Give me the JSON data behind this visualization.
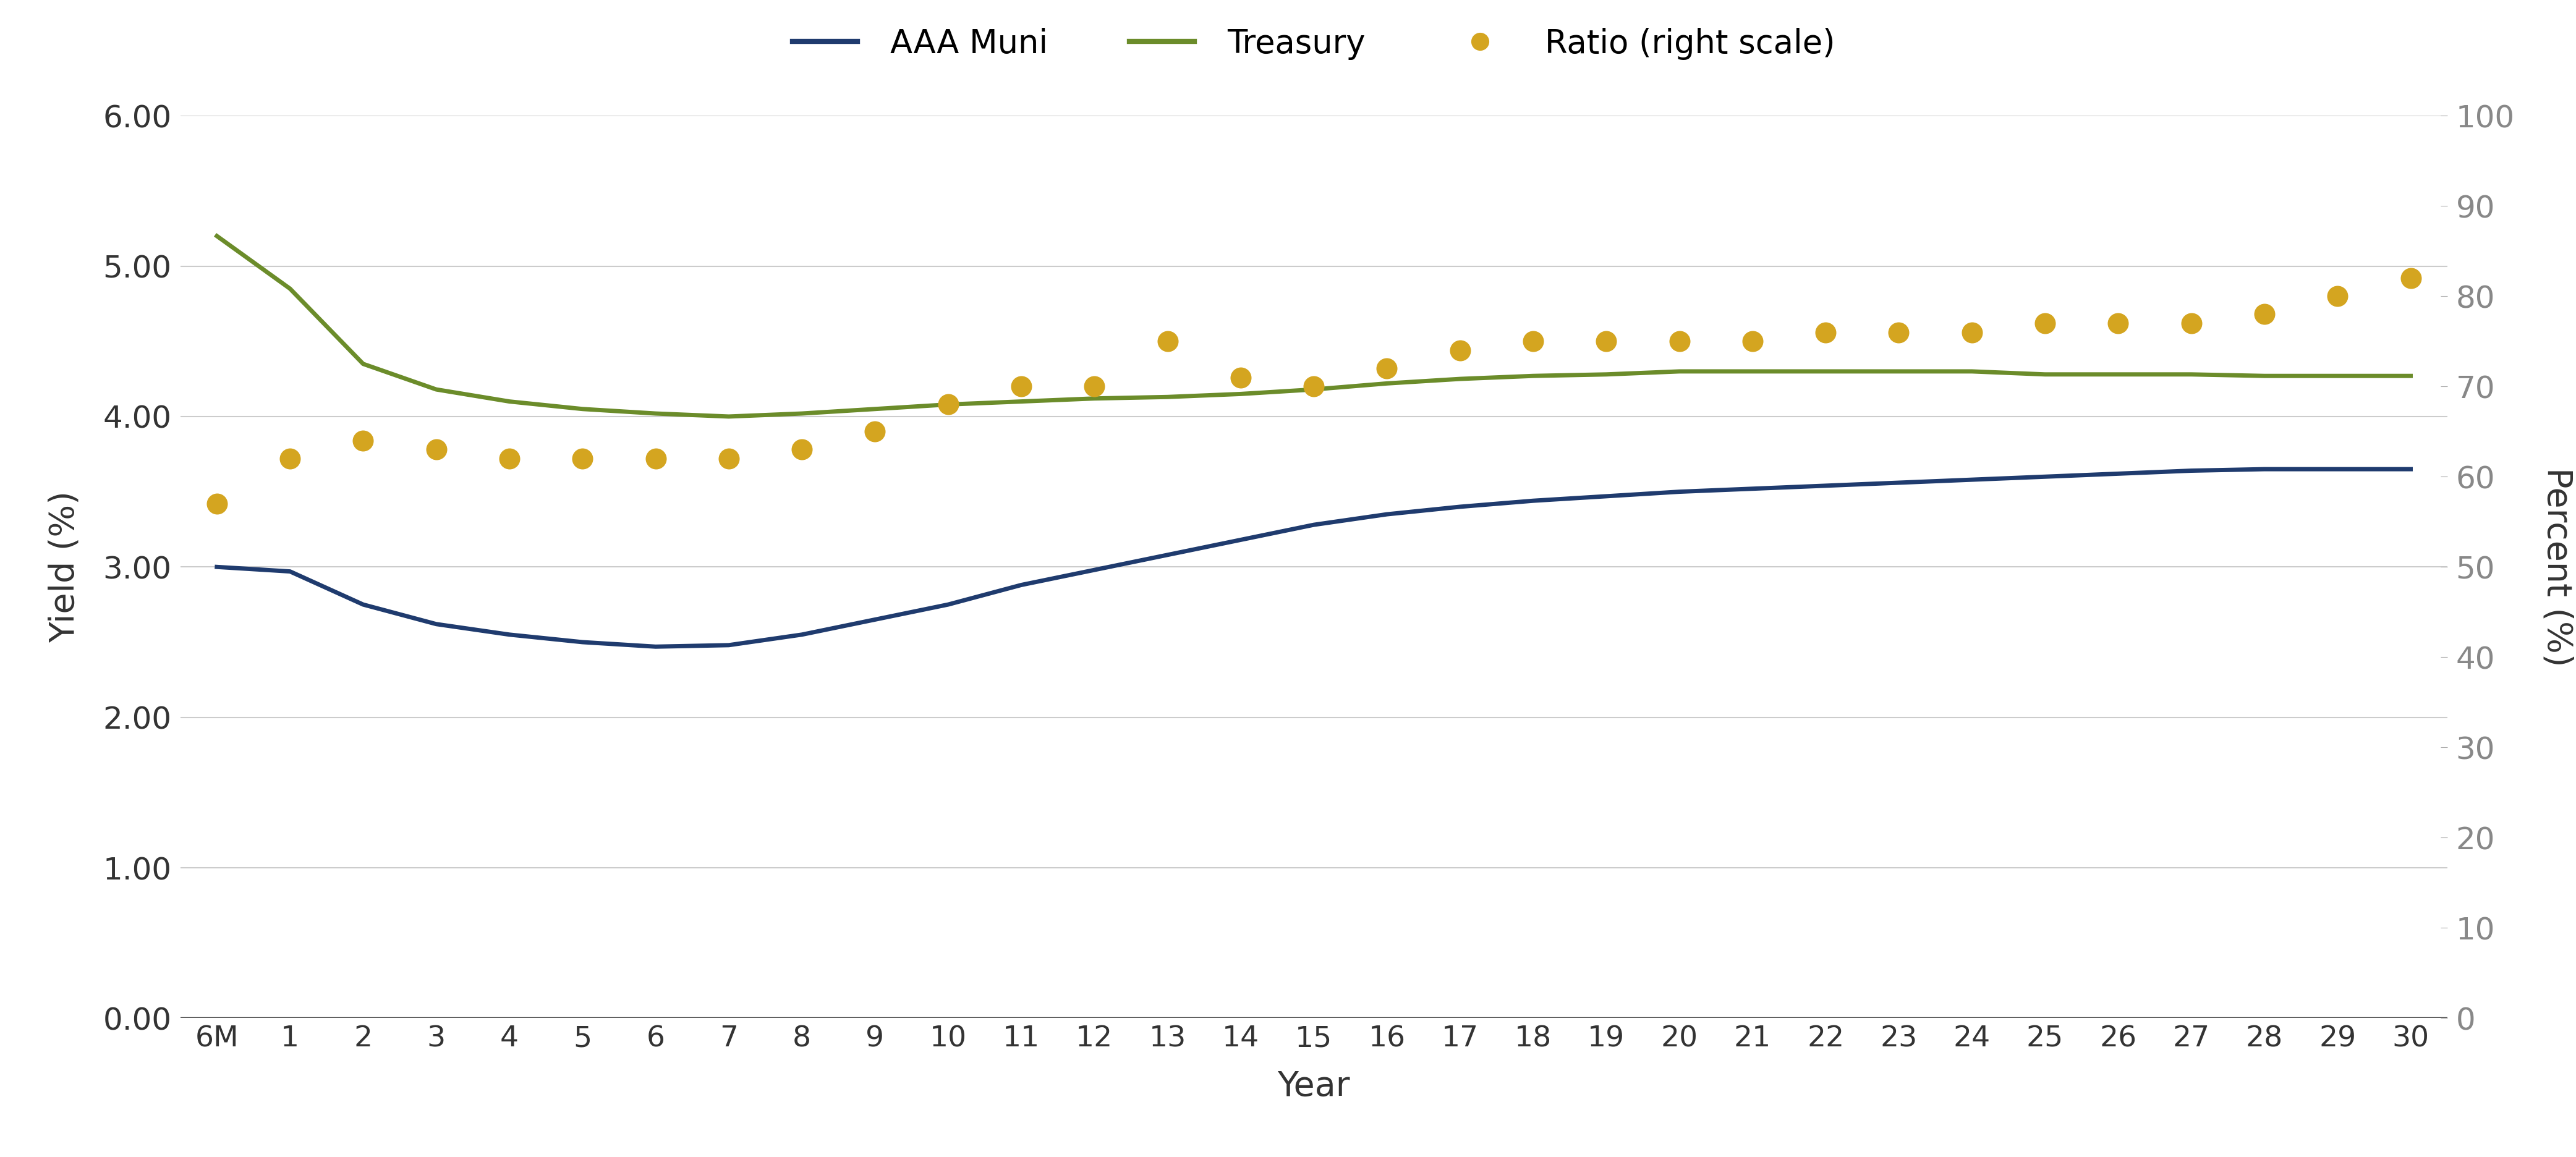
{
  "xlabel": "Year",
  "ylabel_left": "Yield (%)",
  "ylabel_right": "Percent (%)",
  "x_labels": [
    "6M",
    "1",
    "2",
    "3",
    "4",
    "5",
    "6",
    "7",
    "8",
    "9",
    "10",
    "11",
    "12",
    "13",
    "14",
    "15",
    "16",
    "17",
    "18",
    "19",
    "20",
    "21",
    "22",
    "23",
    "24",
    "25",
    "26",
    "27",
    "28",
    "29",
    "30"
  ],
  "aaa_muni": [
    3.0,
    2.97,
    2.75,
    2.62,
    2.55,
    2.5,
    2.47,
    2.48,
    2.55,
    2.65,
    2.75,
    2.88,
    2.98,
    3.08,
    3.18,
    3.28,
    3.35,
    3.4,
    3.44,
    3.47,
    3.5,
    3.52,
    3.54,
    3.56,
    3.58,
    3.6,
    3.62,
    3.64,
    3.65,
    3.65,
    3.65
  ],
  "treasury": [
    5.2,
    4.85,
    4.35,
    4.18,
    4.1,
    4.05,
    4.02,
    4.0,
    4.02,
    4.05,
    4.08,
    4.1,
    4.12,
    4.13,
    4.15,
    4.18,
    4.22,
    4.25,
    4.27,
    4.28,
    4.3,
    4.3,
    4.3,
    4.3,
    4.3,
    4.28,
    4.28,
    4.28,
    4.27,
    4.27,
    4.27
  ],
  "ratio": [
    57,
    62,
    64,
    63,
    62,
    62,
    62,
    62,
    63,
    65,
    68,
    70,
    70,
    75,
    71,
    70,
    72,
    74,
    75,
    75,
    75,
    75,
    76,
    76,
    76,
    77,
    77,
    77,
    78,
    80,
    82
  ],
  "muni_color": "#1f3b6e",
  "treasury_color": "#6b8c2a",
  "ratio_color": "#d4a520",
  "background_color": "#ffffff",
  "grid_color": "#cccccc",
  "ylim_left": [
    0.0,
    6.0
  ],
  "ylim_right": [
    0,
    100
  ],
  "yticks_left": [
    0.0,
    1.0,
    2.0,
    3.0,
    4.0,
    5.0,
    6.0
  ],
  "yticks_right": [
    0,
    10,
    20,
    30,
    40,
    50,
    60,
    70,
    80,
    90,
    100
  ],
  "legend_labels": [
    "AAA Muni",
    "Treasury",
    "Ratio (right scale)"
  ]
}
